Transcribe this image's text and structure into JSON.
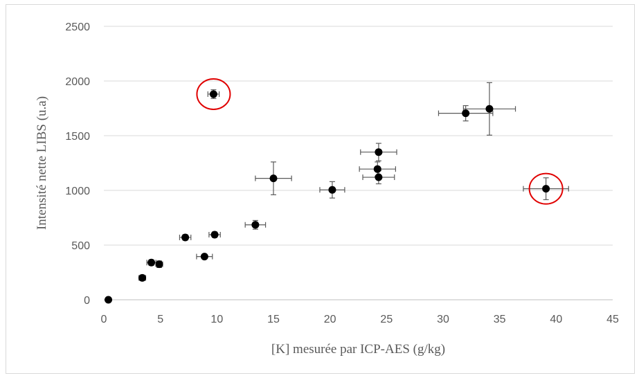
{
  "chart_data": {
    "type": "scatter",
    "title": "",
    "xlabel": "[K] mesurée par ICP-AES (g/kg)",
    "ylabel": "Intensité nette LIBS (u.a)",
    "xlim": [
      0,
      45
    ],
    "ylim": [
      0,
      2500
    ],
    "x_ticks": [
      0,
      5,
      10,
      15,
      20,
      25,
      30,
      35,
      40,
      45
    ],
    "y_ticks": [
      0,
      500,
      1000,
      1500,
      2000,
      2500
    ],
    "grid": "horizontal",
    "legend": "none",
    "series": [
      {
        "marker_color": "#000000",
        "points": [
          {
            "x": 0.4,
            "y": 0,
            "xerr": 0,
            "yerr": 0
          },
          {
            "x": 3.4,
            "y": 200,
            "xerr": 0.3,
            "yerr": 25
          },
          {
            "x": 4.2,
            "y": 340,
            "xerr": 0.4,
            "yerr": 25
          },
          {
            "x": 4.9,
            "y": 325,
            "xerr": 0.3,
            "yerr": 30
          },
          {
            "x": 7.2,
            "y": 570,
            "xerr": 0.5,
            "yerr": 25
          },
          {
            "x": 8.9,
            "y": 395,
            "xerr": 0.7,
            "yerr": 20
          },
          {
            "x": 9.7,
            "y": 1880,
            "xerr": 0.5,
            "yerr": 40
          },
          {
            "x": 9.8,
            "y": 595,
            "xerr": 0.5,
            "yerr": 25
          },
          {
            "x": 13.4,
            "y": 685,
            "xerr": 0.9,
            "yerr": 40
          },
          {
            "x": 15.0,
            "y": 1110,
            "xerr": 1.6,
            "yerr": 150
          },
          {
            "x": 20.2,
            "y": 1005,
            "xerr": 1.1,
            "yerr": 75
          },
          {
            "x": 24.3,
            "y": 1350,
            "xerr": 1.6,
            "yerr": 80
          },
          {
            "x": 24.2,
            "y": 1195,
            "xerr": 1.6,
            "yerr": 65
          },
          {
            "x": 24.3,
            "y": 1120,
            "xerr": 1.4,
            "yerr": 60
          },
          {
            "x": 32.0,
            "y": 1705,
            "xerr": 2.4,
            "yerr": 70
          },
          {
            "x": 34.1,
            "y": 1745,
            "xerr": 2.3,
            "yerr": 240
          },
          {
            "x": 39.1,
            "y": 1015,
            "xerr": 2.0,
            "yerr": 100
          }
        ]
      }
    ],
    "annotations": [
      {
        "shape": "circle",
        "x": 9.7,
        "y": 1880,
        "color": "#e00000"
      },
      {
        "shape": "circle",
        "x": 39.1,
        "y": 1015,
        "color": "#e00000"
      }
    ],
    "colors": {
      "grid": "#d9d9d9",
      "axis": "#bfbfbf",
      "errorbar": "#595959",
      "text": "#595959"
    }
  }
}
